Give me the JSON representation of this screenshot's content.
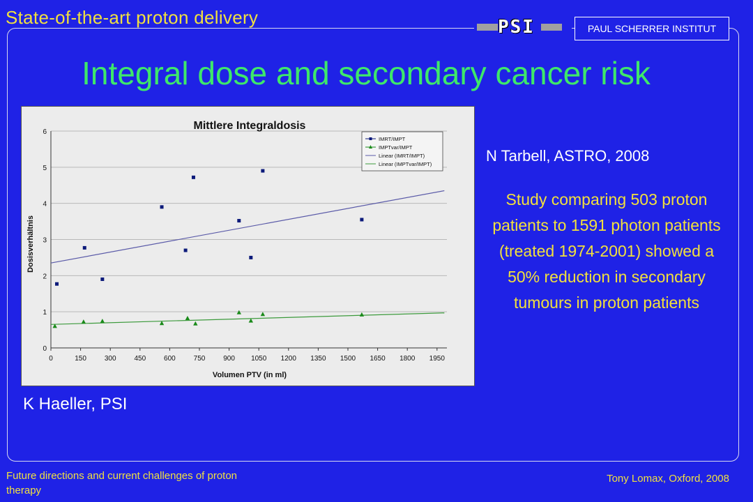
{
  "header": {
    "title": "State-of-the-art proton delivery",
    "logo_text": "PSI",
    "institute": "PAUL SCHERRER INSTITUT"
  },
  "slide": {
    "title": "Integral dose and secondary cancer risk",
    "citation_right": "N Tarbell, ASTRO, 2008",
    "study_text": "Study comparing 503 proton patients to 1591 photon patients (treated 1974-2001) showed a 50% reduction in secondary tumours in proton patients",
    "citation_left": "K Haeller, PSI"
  },
  "footer": {
    "left": "Future directions and current challenges of proton therapy",
    "right": "Tony Lomax, Oxford, 2008"
  },
  "colors": {
    "background": "#1f22e6",
    "accent_yellow": "#f0e040",
    "title_green": "#3ee86a",
    "series_blue": "#0c1a7a",
    "series_green": "#1a8a1a",
    "trend_blue": "#5a5aa8",
    "trend_green": "#3c9a3c"
  },
  "chart_data": {
    "type": "scatter",
    "title": "Mittlere Integraldosis",
    "xlabel": "Volumen PTV (in ml)",
    "ylabel": "Dosisverhältnis",
    "xlim": [
      0,
      2000
    ],
    "ylim": [
      0,
      6
    ],
    "xticks": [
      "0",
      "150",
      "300",
      "450",
      "600",
      "750",
      "900",
      "1050",
      "1200",
      "1350",
      "1500",
      "1650",
      "1800",
      "1950"
    ],
    "yticks": [
      "0",
      "1",
      "2",
      "3",
      "4",
      "5",
      "6"
    ],
    "grid": true,
    "legend_position": "top-right",
    "series": [
      {
        "name": "IMRT/IMPT",
        "marker": "square",
        "color": "#0c1a7a",
        "points": [
          [
            30,
            1.77
          ],
          [
            170,
            2.77
          ],
          [
            260,
            1.9
          ],
          [
            560,
            3.9
          ],
          [
            680,
            2.7
          ],
          [
            720,
            4.72
          ],
          [
            950,
            3.52
          ],
          [
            1010,
            2.5
          ],
          [
            1070,
            4.9
          ],
          [
            1570,
            3.55
          ]
        ]
      },
      {
        "name": "IMPTvar/IMPT",
        "marker": "triangle",
        "color": "#1a8a1a",
        "points": [
          [
            20,
            0.6
          ],
          [
            165,
            0.72
          ],
          [
            260,
            0.74
          ],
          [
            560,
            0.68
          ],
          [
            690,
            0.82
          ],
          [
            730,
            0.67
          ],
          [
            950,
            0.98
          ],
          [
            1010,
            0.75
          ],
          [
            1070,
            0.93
          ],
          [
            1570,
            0.92
          ]
        ]
      }
    ],
    "trendlines": [
      {
        "name": "Linear (IMRT/IMPT)",
        "color": "#5a5aa8",
        "x": [
          0,
          1987
        ],
        "y": [
          2.35,
          4.35
        ]
      },
      {
        "name": "Linear (IMPTvar/IMPT)",
        "color": "#3c9a3c",
        "x": [
          0,
          1987
        ],
        "y": [
          0.65,
          0.97
        ]
      }
    ]
  }
}
